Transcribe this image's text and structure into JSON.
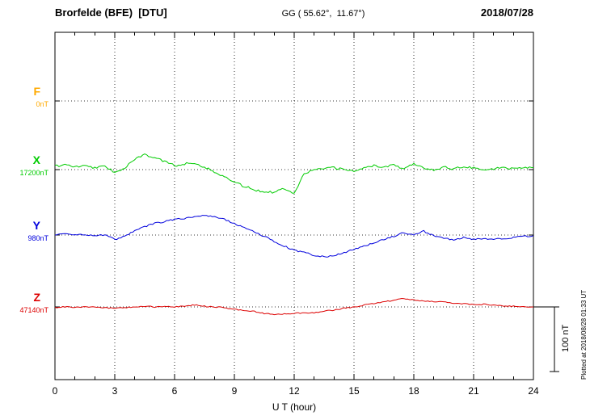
{
  "header": {
    "station": "Brorfelde (BFE)  [DTU]",
    "coords": "GG ( 55.62°,  11.67°)",
    "date": "2018/07/28"
  },
  "annotations": {
    "plotted_at": "Plotted at 2018/08/28 01:33 UT"
  },
  "chart_data": {
    "type": "line",
    "title": "Brorfelde (BFE) [DTU] magnetogram 2018/07/28",
    "xlabel": "U T (hour)",
    "xlim": [
      0,
      24
    ],
    "x_ticks": [
      0,
      3,
      6,
      9,
      12,
      15,
      18,
      21,
      24
    ],
    "x_step_hours": 0.5,
    "grid": "dotted",
    "scale_bar": {
      "label": "100 nT",
      "nT": 100
    },
    "series": [
      {
        "name": "F",
        "color": "#ffaa00",
        "baseline_label": "0nT",
        "baseline": 0,
        "values": []
      },
      {
        "name": "X",
        "color": "#00cc00",
        "baseline_label": "17200nT",
        "baseline": 17200,
        "values": [
          17205,
          17208,
          17204,
          17206,
          17203,
          17205,
          17196,
          17203,
          17215,
          17224,
          17218,
          17213,
          17206,
          17209,
          17211,
          17204,
          17196,
          17190,
          17180,
          17174,
          17169,
          17166,
          17165,
          17171,
          17164,
          17194,
          17200,
          17201,
          17203,
          17200,
          17198,
          17203,
          17206,
          17204,
          17208,
          17201,
          17210,
          17203,
          17199,
          17204,
          17201,
          17205,
          17203,
          17200,
          17201,
          17204,
          17201,
          17204,
          17203
        ]
      },
      {
        "name": "Y",
        "color": "#0000dd",
        "baseline_label": "980nT",
        "baseline": 980,
        "values": [
          980,
          981,
          981,
          980,
          979,
          980,
          973,
          978,
          986,
          993,
          998,
          1001,
          1004,
          1006,
          1009,
          1011,
          1008,
          1004,
          998,
          991,
          985,
          978,
          970,
          963,
          956,
          953,
          949,
          946,
          948,
          953,
          958,
          963,
          968,
          973,
          978,
          984,
          980,
          986,
          979,
          975,
          973,
          976,
          973,
          974,
          973,
          975,
          976,
          978,
          979
        ]
      },
      {
        "name": "Z",
        "color": "#dd0000",
        "baseline_label": "47140nT",
        "baseline": 47140,
        "values": [
          47139,
          47140,
          47139,
          47140,
          47140,
          47139,
          47138,
          47139,
          47140,
          47141,
          47140,
          47141,
          47140,
          47141,
          47143,
          47141,
          47140,
          47139,
          47136,
          47135,
          47133,
          47130,
          47128,
          47129,
          47130,
          47131,
          47131,
          47134,
          47135,
          47138,
          47140,
          47143,
          47145,
          47148,
          47150,
          47153,
          47151,
          47149,
          47148,
          47148,
          47146,
          47145,
          47144,
          47144,
          47143,
          47141,
          47141,
          47140,
          47140
        ]
      }
    ]
  }
}
